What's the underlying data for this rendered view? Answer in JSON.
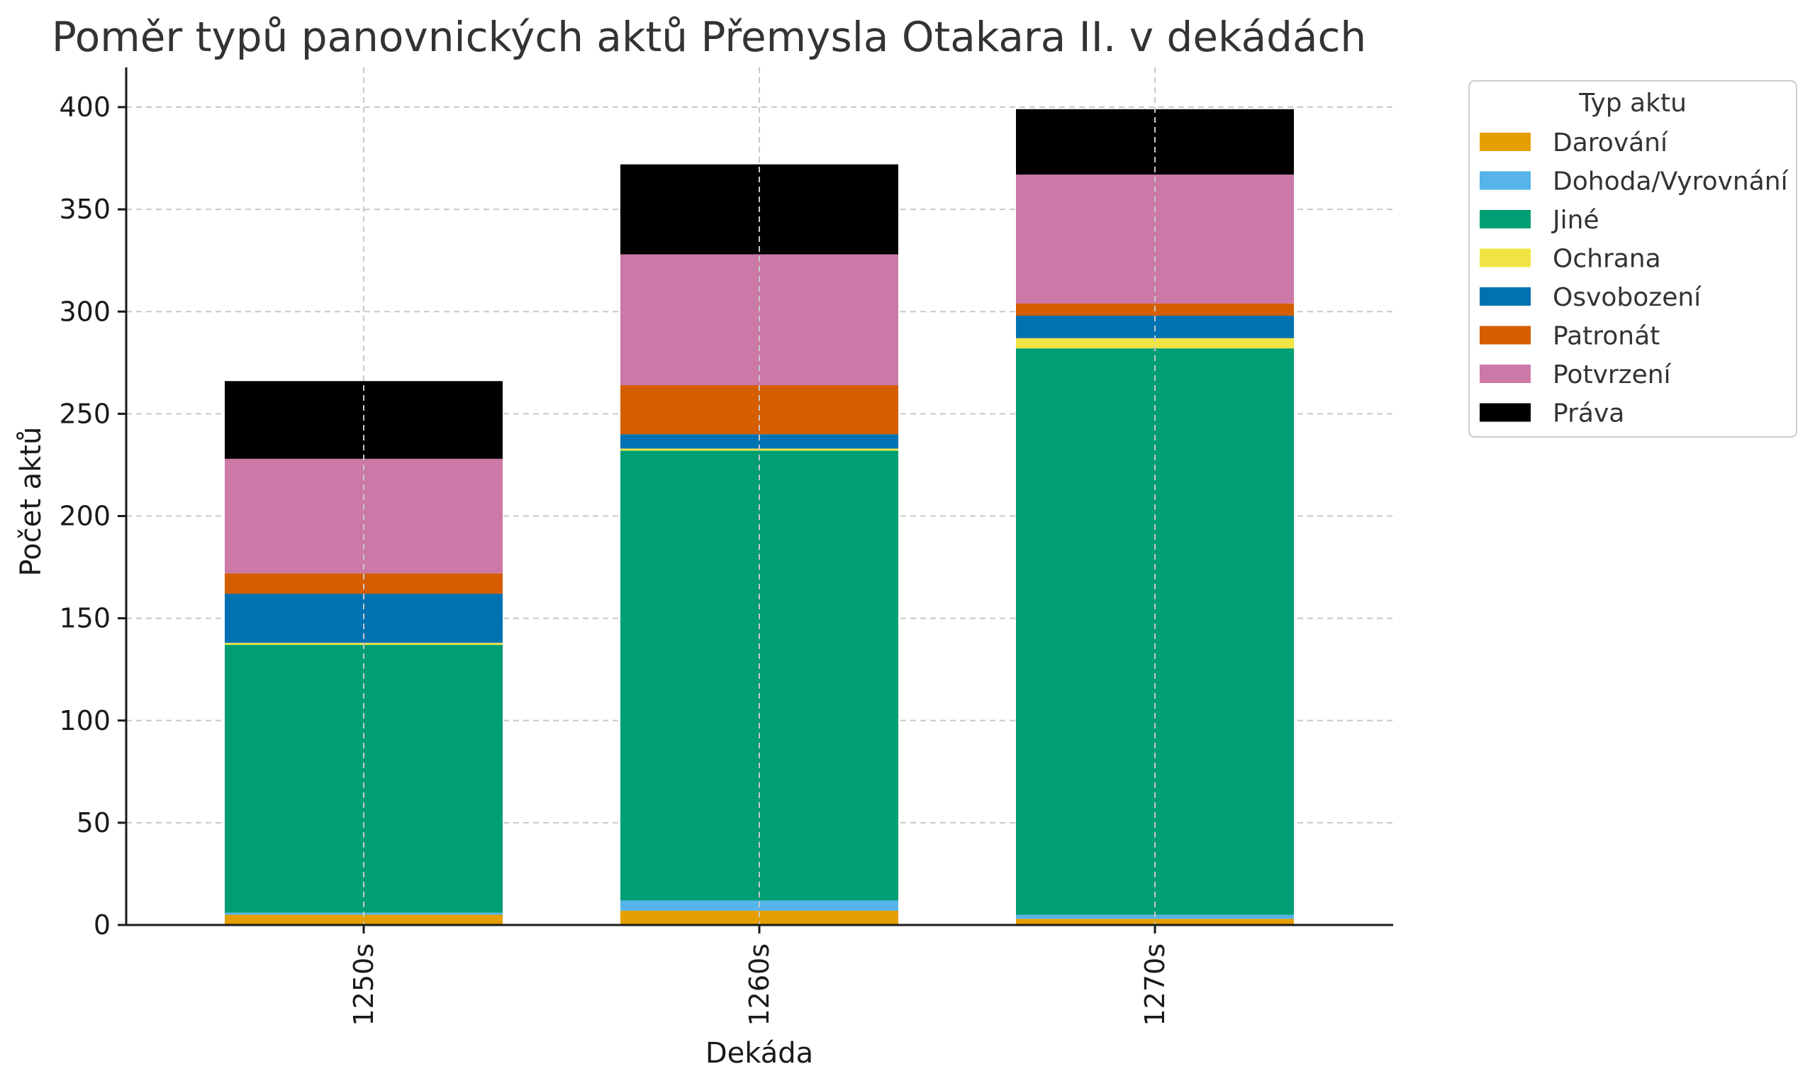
{
  "chart_data": {
    "type": "bar",
    "stacked": true,
    "title": "Poměr typů panovnických aktů Přemysla Otakara II. v dekádách",
    "xlabel": "Dekáda",
    "ylabel": "Počet aktů",
    "ylim": [
      0,
      420
    ],
    "yticks": [
      0,
      50,
      100,
      150,
      200,
      250,
      300,
      350,
      400
    ],
    "grid": true,
    "legend_title": "Typ aktu",
    "legend_position": "outside-right",
    "categories": [
      "1250s",
      "1260s",
      "1270s"
    ],
    "series": [
      {
        "name": "Darování",
        "color": "#E69F00",
        "values": [
          5,
          7,
          3
        ]
      },
      {
        "name": "Dohoda/Vyrovnání",
        "color": "#56B4E9",
        "values": [
          1,
          5,
          2
        ]
      },
      {
        "name": "Jiné",
        "color": "#009E73",
        "values": [
          131,
          220,
          277
        ]
      },
      {
        "name": "Ochrana",
        "color": "#F0E442",
        "values": [
          1,
          1,
          5
        ]
      },
      {
        "name": "Osvobození",
        "color": "#0072B2",
        "values": [
          24,
          7,
          11
        ]
      },
      {
        "name": "Patronát",
        "color": "#D55E00",
        "values": [
          10,
          24,
          6
        ]
      },
      {
        "name": "Potvrzení",
        "color": "#CC79A7",
        "values": [
          56,
          64,
          63
        ]
      },
      {
        "name": "Práva",
        "color": "#000000",
        "values": [
          38,
          44,
          32
        ]
      }
    ]
  }
}
